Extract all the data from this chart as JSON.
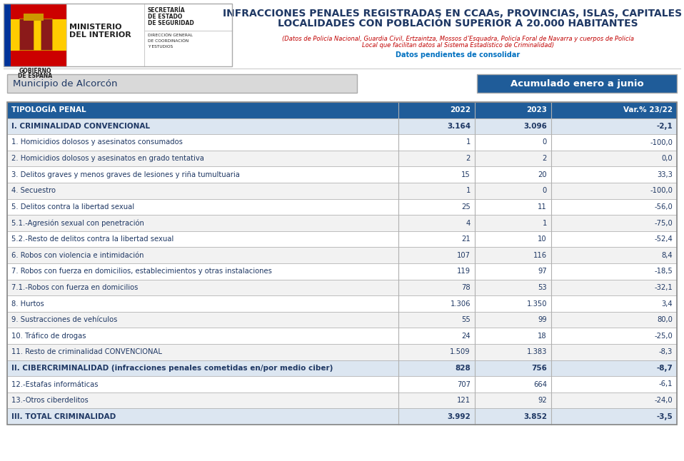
{
  "title_line1": "INFRACCIONES PENALES REGISTRADAS EN CCAAs, PROVINCIAS, ISLAS, CAPITALES Y",
  "title_line2": "LOCALIDADES CON POBLACIÓN SUPERIOR A 20.000 HABITANTES",
  "subtitle1": "(Datos de Policía Nacional, Guardia Civil, Ertzaintza, Mossos d’Esquadra, Policía Foral de Navarra y cuerpos de Policía",
  "subtitle2": "Local que facilitan datos al Sistema Estadístico de Criminalidad)",
  "subtitle3": "Datos pendientes de consolidar",
  "municipio": "Municipio de Alcorcón",
  "periodo": "Acumulado enero a junio",
  "col_headers": [
    "TIPOLOGÍA PENAL",
    "2022",
    "2023",
    "Var.% 23/22"
  ],
  "rows": [
    {
      "label": "I. CRIMINALIDAD CONVENCIONAL",
      "v2022": "3.164",
      "v2023": "3.096",
      "var": "-2,1",
      "bold": true,
      "bg": "#dce6f1"
    },
    {
      "label": "1. Homicidios dolosos y asesinatos consumados",
      "v2022": "1",
      "v2023": "0",
      "var": "-100,0",
      "bold": false,
      "bg": "#ffffff"
    },
    {
      "label": "2. Homicidios dolosos y asesinatos en grado tentativa",
      "v2022": "2",
      "v2023": "2",
      "var": "0,0",
      "bold": false,
      "bg": "#f2f2f2"
    },
    {
      "label": "3. Delitos graves y menos graves de lesiones y riña tumultuaria",
      "v2022": "15",
      "v2023": "20",
      "var": "33,3",
      "bold": false,
      "bg": "#ffffff"
    },
    {
      "label": "4. Secuestro",
      "v2022": "1",
      "v2023": "0",
      "var": "-100,0",
      "bold": false,
      "bg": "#f2f2f2"
    },
    {
      "label": "5. Delitos contra la libertad sexual",
      "v2022": "25",
      "v2023": "11",
      "var": "-56,0",
      "bold": false,
      "bg": "#ffffff"
    },
    {
      "label": "5.1.-Agresión sexual con penetración",
      "v2022": "4",
      "v2023": "1",
      "var": "-75,0",
      "bold": false,
      "bg": "#f2f2f2"
    },
    {
      "label": "5.2.-Resto de delitos contra la libertad sexual",
      "v2022": "21",
      "v2023": "10",
      "var": "-52,4",
      "bold": false,
      "bg": "#ffffff"
    },
    {
      "label": "6. Robos con violencia e intimidación",
      "v2022": "107",
      "v2023": "116",
      "var": "8,4",
      "bold": false,
      "bg": "#f2f2f2"
    },
    {
      "label": "7. Robos con fuerza en domicilios, establecimientos y otras instalaciones",
      "v2022": "119",
      "v2023": "97",
      "var": "-18,5",
      "bold": false,
      "bg": "#ffffff"
    },
    {
      "label": "7.1.-Robos con fuerza en domicilios",
      "v2022": "78",
      "v2023": "53",
      "var": "-32,1",
      "bold": false,
      "bg": "#f2f2f2"
    },
    {
      "label": "8. Hurtos",
      "v2022": "1.306",
      "v2023": "1.350",
      "var": "3,4",
      "bold": false,
      "bg": "#ffffff"
    },
    {
      "label": "9. Sustracciones de vehículos",
      "v2022": "55",
      "v2023": "99",
      "var": "80,0",
      "bold": false,
      "bg": "#f2f2f2"
    },
    {
      "label": "10. Tráfico de drogas",
      "v2022": "24",
      "v2023": "18",
      "var": "-25,0",
      "bold": false,
      "bg": "#ffffff"
    },
    {
      "label": "11. Resto de criminalidad CONVENCIONAL",
      "v2022": "1.509",
      "v2023": "1.383",
      "var": "-8,3",
      "bold": false,
      "bg": "#f2f2f2"
    },
    {
      "label": "II. CIBERCRIMINALIDAD (infracciones penales cometidas en/por medio ciber)",
      "v2022": "828",
      "v2023": "756",
      "var": "-8,7",
      "bold": true,
      "bg": "#dce6f1"
    },
    {
      "label": "12.-Estafas informáticas",
      "v2022": "707",
      "v2023": "664",
      "var": "-6,1",
      "bold": false,
      "bg": "#ffffff"
    },
    {
      "label": "13.-Otros ciberdelitos",
      "v2022": "121",
      "v2023": "92",
      "var": "-24,0",
      "bold": false,
      "bg": "#f2f2f2"
    },
    {
      "label": "III. TOTAL CRIMINALIDAD",
      "v2022": "3.992",
      "v2023": "3.852",
      "var": "-3,5",
      "bold": true,
      "bg": "#dce6f1"
    }
  ],
  "header_bg": "#1f5c99",
  "header_text": "#ffffff",
  "bold_text": "#1f3864",
  "normal_text": "#1f3864",
  "border_color": "#b0b0b0",
  "title_color": "#1f3864",
  "subtitle_color": "#c00000",
  "subtitle3_color": "#0070c0",
  "municipio_bg": "#d9d9d9",
  "periodo_bg": "#1f5c99",
  "periodo_text": "#ffffff",
  "flag_blue": "#003399",
  "flag_red": "#cc0000",
  "flag_yellow": "#ffcc00"
}
